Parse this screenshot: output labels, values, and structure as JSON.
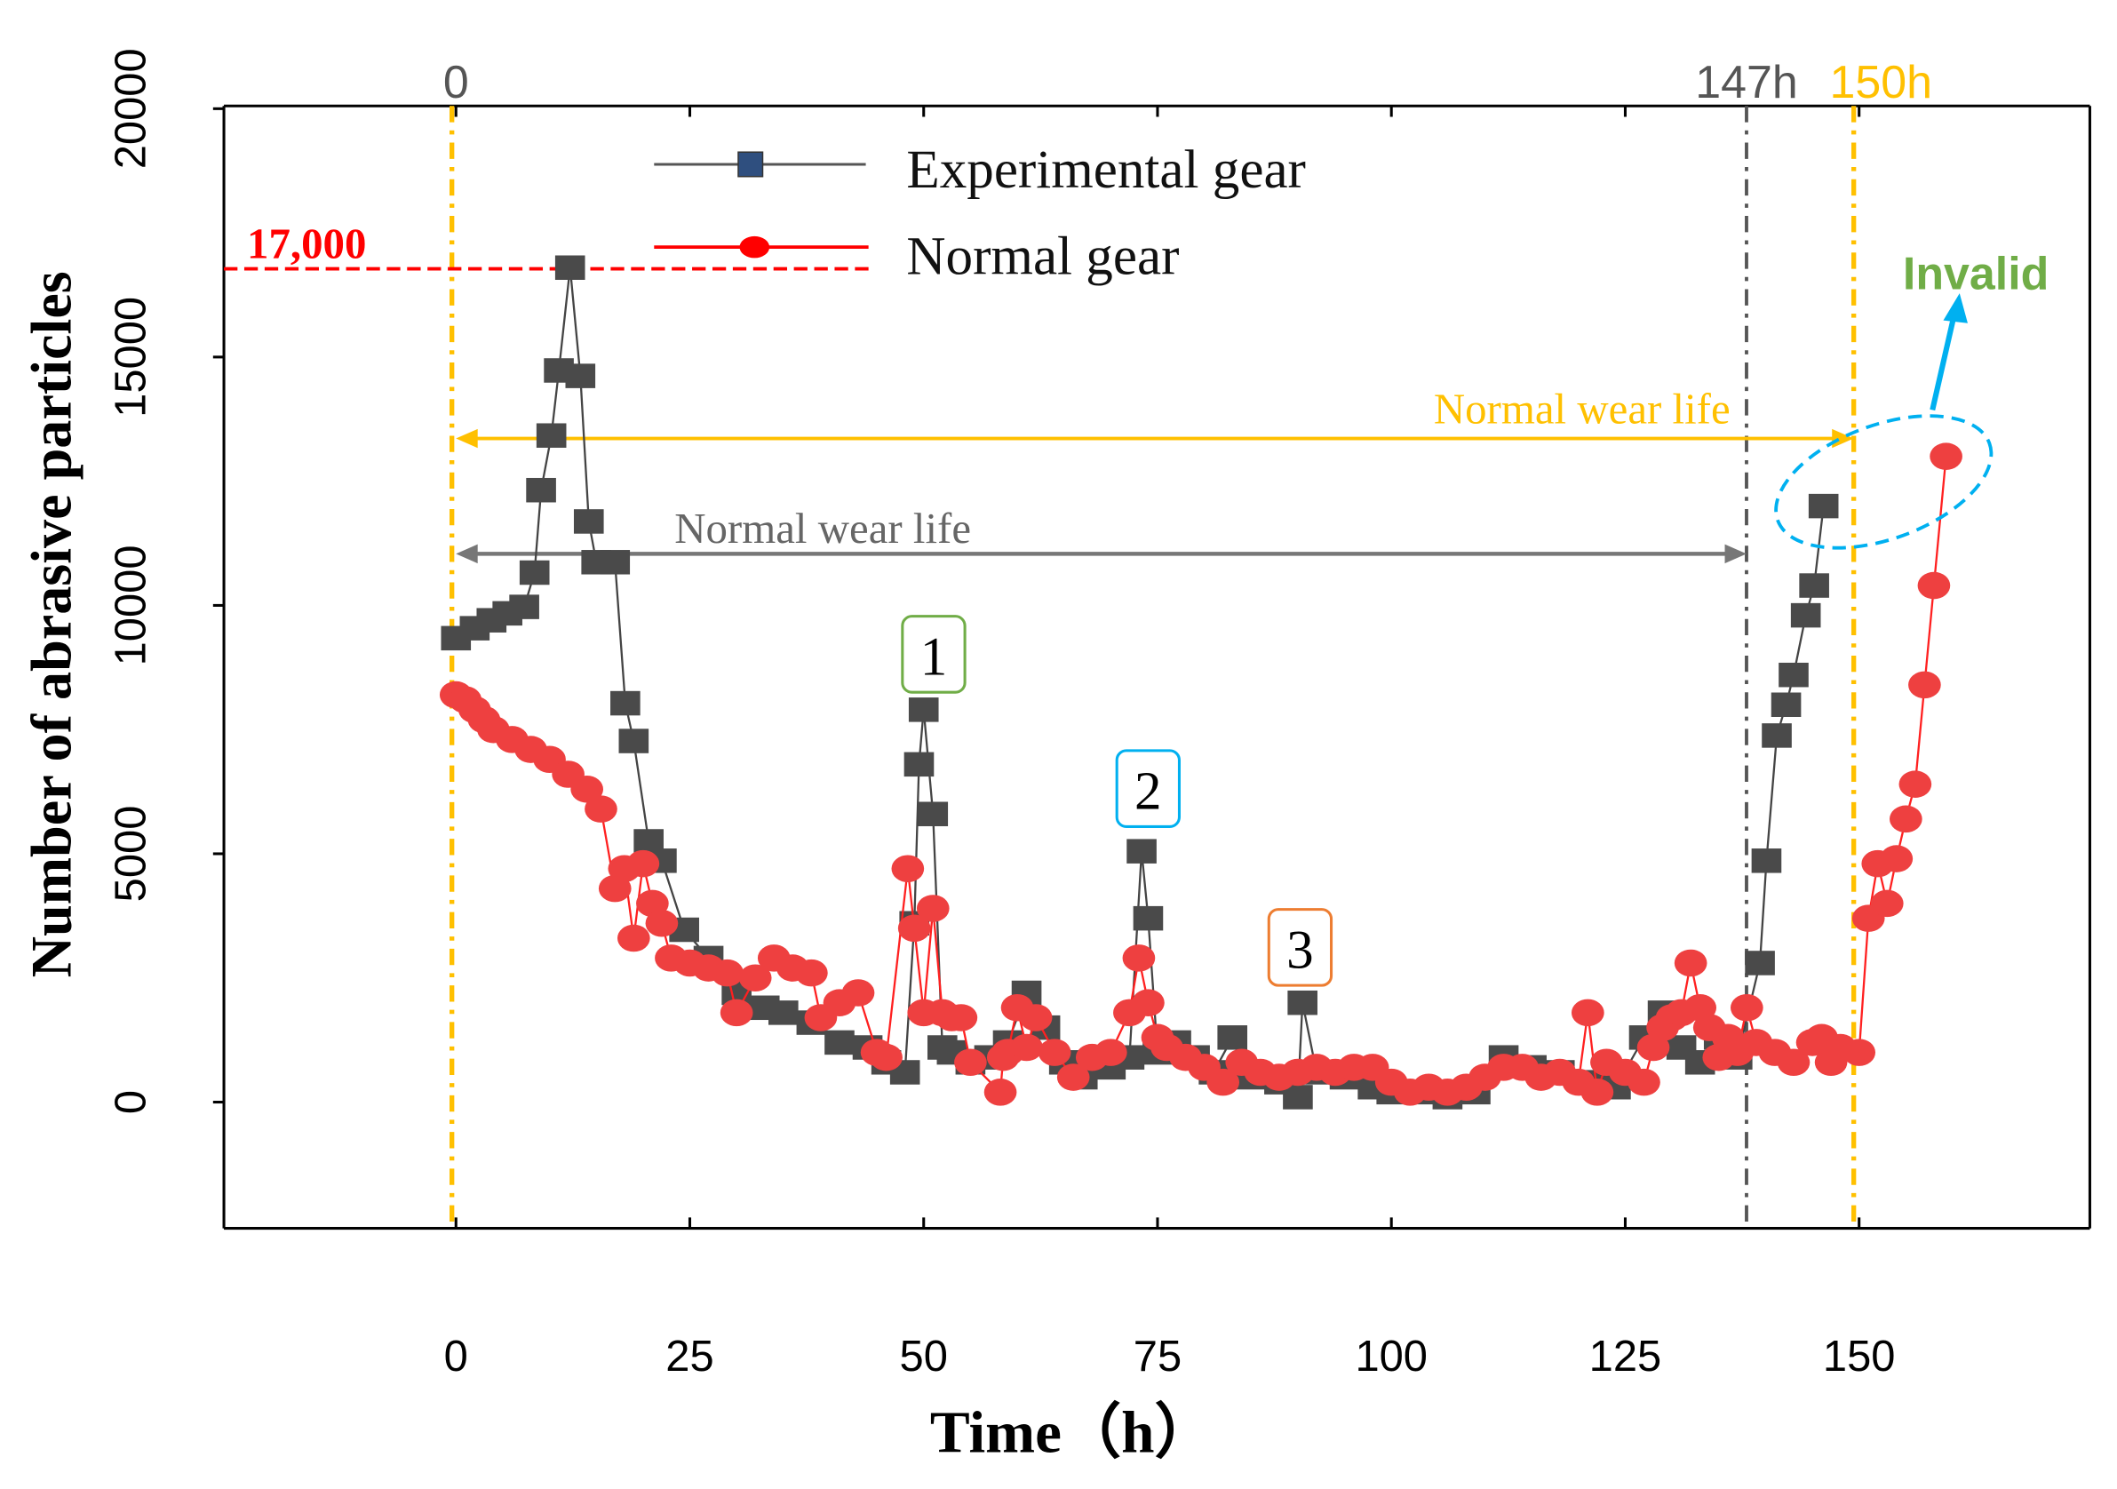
{
  "chart_data": {
    "type": "line",
    "title": "",
    "xlabel": "Time（h）",
    "ylabel": "Number of abrasive particles",
    "xlim": [
      -25,
      175
    ],
    "ylim": [
      -2500,
      20000
    ],
    "grid": false,
    "legend_position": "top-center",
    "xticks": [
      0,
      25,
      50,
      75,
      100,
      125,
      150
    ],
    "xtick_labels": [
      "0",
      "25",
      "50",
      "75",
      "100",
      "125",
      "150"
    ],
    "yticks": [
      0,
      5000,
      10000,
      15000,
      20000
    ],
    "ytick_labels": [
      "0",
      "5000",
      "10000",
      "15000",
      "20000"
    ],
    "series": [
      {
        "name": "Experimental gear",
        "marker": "square",
        "color": "#4a4a4a",
        "points": [
          [
            0,
            9340
          ],
          [
            2,
            9540
          ],
          [
            3.8,
            9700
          ],
          [
            5.5,
            9840
          ],
          [
            7.3,
            9970
          ],
          [
            8.4,
            10660
          ],
          [
            9.1,
            12320
          ],
          [
            10.2,
            13420
          ],
          [
            11,
            14730
          ],
          [
            12.2,
            16800
          ],
          [
            13.3,
            14620
          ],
          [
            14.2,
            11690
          ],
          [
            15,
            10870
          ],
          [
            17,
            10870
          ],
          [
            18.1,
            8030
          ],
          [
            19,
            7270
          ],
          [
            20.6,
            5250
          ],
          [
            22,
            4860
          ],
          [
            24.4,
            3470
          ],
          [
            27,
            2900
          ],
          [
            30,
            2200
          ],
          [
            33,
            1900
          ],
          [
            35,
            1800
          ],
          [
            38,
            1600
          ],
          [
            41,
            1200
          ],
          [
            44,
            1100
          ],
          [
            46,
            800
          ],
          [
            48,
            600
          ],
          [
            49,
            3600
          ],
          [
            49.5,
            6800
          ],
          [
            50,
            7900
          ],
          [
            51,
            5800
          ],
          [
            52,
            1100
          ],
          [
            53,
            1000
          ],
          [
            55,
            800
          ],
          [
            57,
            900
          ],
          [
            59,
            1200
          ],
          [
            61,
            2200
          ],
          [
            63,
            1500
          ],
          [
            65,
            800
          ],
          [
            67,
            500
          ],
          [
            70,
            700
          ],
          [
            72,
            900
          ],
          [
            73.3,
            5050
          ],
          [
            74,
            3700
          ],
          [
            75,
            1000
          ],
          [
            77,
            1200
          ],
          [
            79,
            900
          ],
          [
            81,
            600
          ],
          [
            83,
            1300
          ],
          [
            85,
            500
          ],
          [
            88,
            400
          ],
          [
            90,
            100
          ],
          [
            90.5,
            2000
          ],
          [
            92,
            600
          ],
          [
            95,
            500
          ],
          [
            98,
            300
          ],
          [
            100,
            200
          ],
          [
            103,
            200
          ],
          [
            106,
            100
          ],
          [
            109,
            200
          ],
          [
            112,
            900
          ],
          [
            115,
            700
          ],
          [
            118,
            600
          ],
          [
            121,
            400
          ],
          [
            124,
            300
          ],
          [
            127,
            1300
          ],
          [
            129,
            1800
          ],
          [
            131,
            1100
          ],
          [
            133,
            800
          ],
          [
            135,
            1300
          ],
          [
            137,
            900
          ],
          [
            139.4,
            2800
          ],
          [
            140.1,
            4860
          ],
          [
            141.2,
            7380
          ],
          [
            142.2,
            8000
          ],
          [
            143,
            8600
          ],
          [
            144.3,
            9800
          ],
          [
            145.2,
            10400
          ],
          [
            146.2,
            12000
          ]
        ]
      },
      {
        "name": "Normal gear",
        "marker": "circle",
        "color": "#ee4040",
        "points": [
          [
            0,
            8200
          ],
          [
            1,
            8100
          ],
          [
            2,
            7900
          ],
          [
            3,
            7700
          ],
          [
            4,
            7500
          ],
          [
            6,
            7300
          ],
          [
            8,
            7100
          ],
          [
            10,
            6900
          ],
          [
            12,
            6600
          ],
          [
            14,
            6300
          ],
          [
            15.5,
            5900
          ],
          [
            17,
            4300
          ],
          [
            18,
            4700
          ],
          [
            19,
            3300
          ],
          [
            20,
            4800
          ],
          [
            21,
            4000
          ],
          [
            22,
            3600
          ],
          [
            23,
            2900
          ],
          [
            25,
            2800
          ],
          [
            27,
            2700
          ],
          [
            29,
            2600
          ],
          [
            30,
            1800
          ],
          [
            32,
            2500
          ],
          [
            34,
            2900
          ],
          [
            36,
            2700
          ],
          [
            38,
            2600
          ],
          [
            39,
            1700
          ],
          [
            41,
            2000
          ],
          [
            43,
            2200
          ],
          [
            45,
            1000
          ],
          [
            46,
            900
          ],
          [
            48.3,
            4700
          ],
          [
            49,
            3500
          ],
          [
            50,
            1800
          ],
          [
            51,
            3900
          ],
          [
            52,
            1800
          ],
          [
            53,
            1700
          ],
          [
            54,
            1700
          ],
          [
            55,
            800
          ],
          [
            58.2,
            200
          ],
          [
            58.5,
            900
          ],
          [
            59,
            1000
          ],
          [
            60,
            1900
          ],
          [
            61,
            1100
          ],
          [
            62,
            1700
          ],
          [
            64,
            1000
          ],
          [
            66,
            500
          ],
          [
            68,
            900
          ],
          [
            70,
            1000
          ],
          [
            72,
            1800
          ],
          [
            73,
            2900
          ],
          [
            74,
            2000
          ],
          [
            75,
            1300
          ],
          [
            76,
            1100
          ],
          [
            78,
            900
          ],
          [
            80,
            700
          ],
          [
            82,
            400
          ],
          [
            84,
            800
          ],
          [
            86,
            600
          ],
          [
            88,
            500
          ],
          [
            90,
            600
          ],
          [
            92,
            700
          ],
          [
            94,
            600
          ],
          [
            96,
            700
          ],
          [
            98,
            700
          ],
          [
            100,
            400
          ],
          [
            102,
            200
          ],
          [
            104,
            300
          ],
          [
            106,
            200
          ],
          [
            108,
            300
          ],
          [
            110,
            500
          ],
          [
            112,
            700
          ],
          [
            114,
            700
          ],
          [
            116,
            500
          ],
          [
            118,
            600
          ],
          [
            120,
            400
          ],
          [
            121,
            1800
          ],
          [
            122,
            200
          ],
          [
            123,
            800
          ],
          [
            125,
            600
          ],
          [
            127,
            400
          ],
          [
            128,
            1100
          ],
          [
            129,
            1500
          ],
          [
            130,
            1700
          ],
          [
            131,
            1800
          ],
          [
            132,
            2800
          ],
          [
            133,
            1900
          ],
          [
            134,
            1500
          ],
          [
            135,
            900
          ],
          [
            136,
            1300
          ],
          [
            137,
            1000
          ],
          [
            138,
            1900
          ],
          [
            139,
            1200
          ],
          [
            141,
            1000
          ],
          [
            143,
            800
          ],
          [
            145,
            1200
          ],
          [
            146,
            1300
          ],
          [
            147,
            800
          ],
          [
            148,
            1100
          ],
          [
            150,
            1000
          ],
          [
            151,
            3700
          ],
          [
            152,
            4800
          ],
          [
            153,
            4000
          ],
          [
            154,
            4900
          ],
          [
            155,
            5700
          ],
          [
            156,
            6400
          ],
          [
            157,
            8400
          ],
          [
            158,
            10400
          ],
          [
            159.3,
            13000
          ]
        ]
      }
    ],
    "annotations": {
      "top_labels": {
        "start": "0",
        "experimental_end": "147h",
        "normal_end": "150h"
      },
      "threshold_label": "17,000",
      "threshold_value": 17000,
      "wear_life_normal": "Normal wear life",
      "wear_life_experimental": "Normal wear life",
      "peak_labels": [
        "1",
        "2",
        "3"
      ],
      "invalid_label": "Invalid"
    },
    "colors": {
      "yellow": "#ffc000",
      "gray": "#555555",
      "red": "#ff0000",
      "green": "#70ad47",
      "cyan": "#00b0f0",
      "orange": "#ed7d31"
    }
  }
}
